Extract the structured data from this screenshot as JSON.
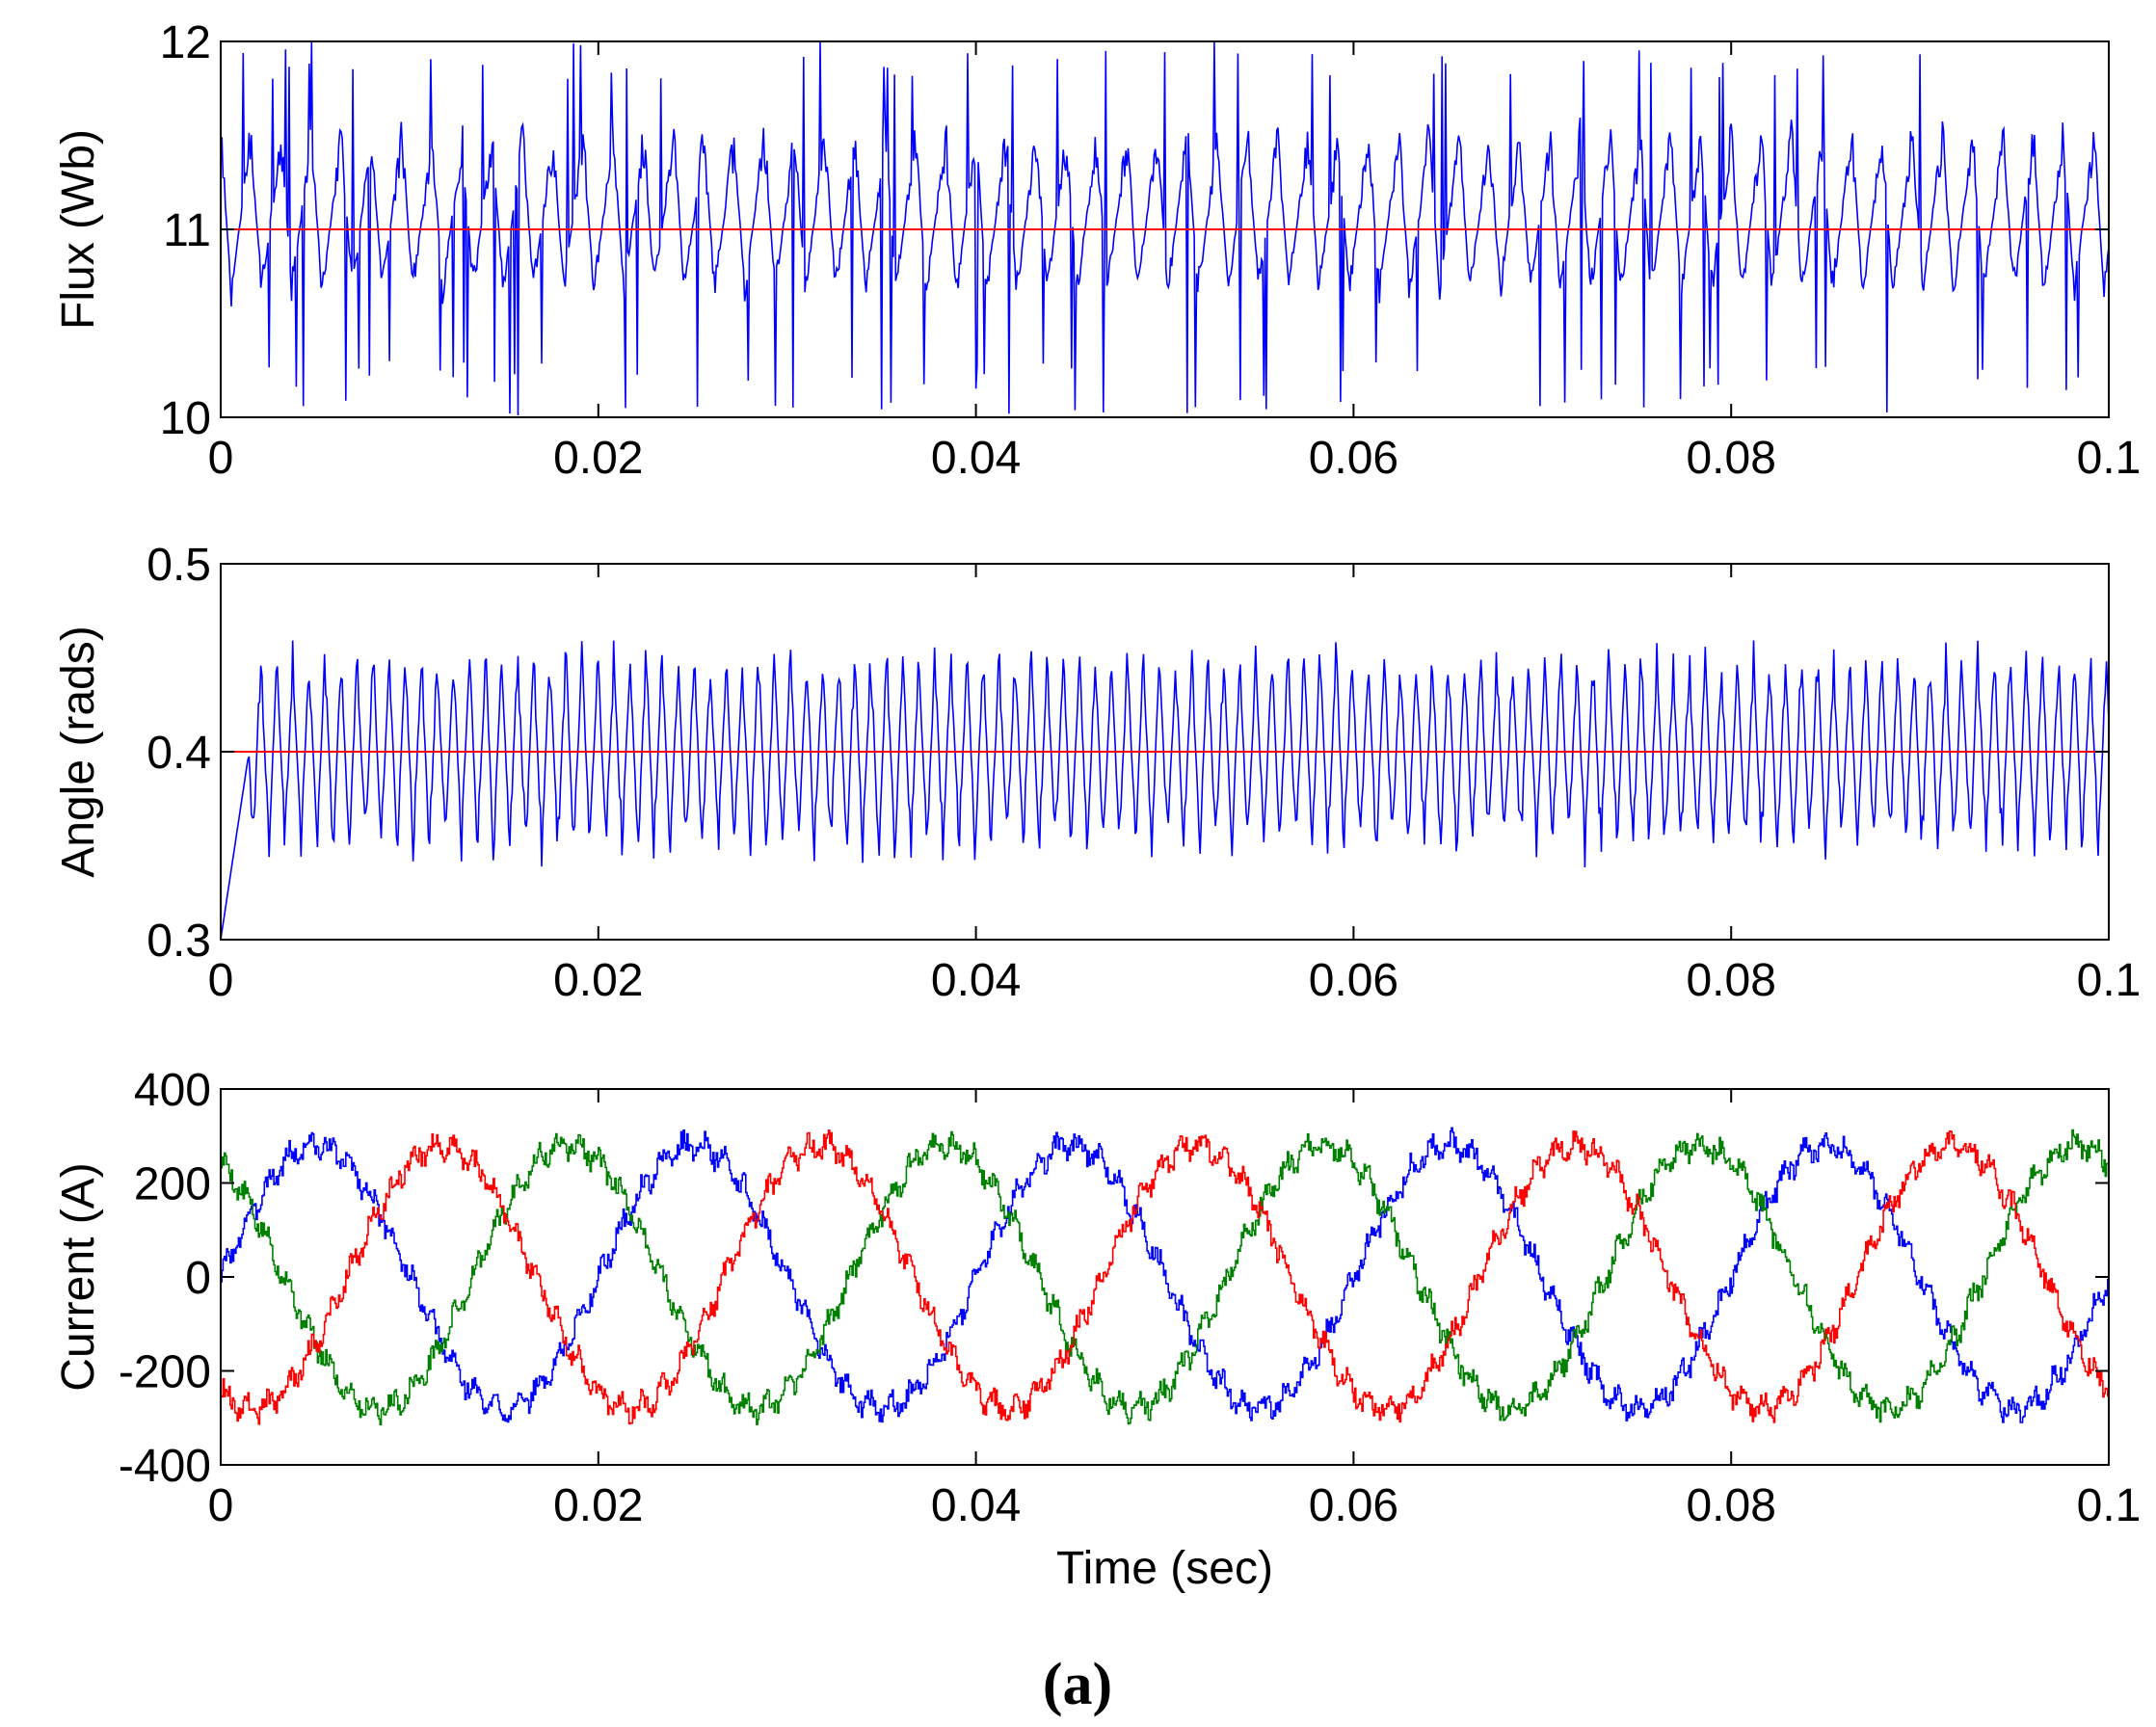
{
  "figure_caption": "(a)",
  "colors": {
    "measured": "#0000ff",
    "reference": "#ff0000",
    "phase_a": "#0000ff",
    "phase_b": "#008000",
    "phase_c": "#ff0000"
  },
  "chart_data": [
    {
      "type": "line",
      "ylabel": "Flux (Wb)",
      "xlabel": "",
      "xlim": [
        0,
        0.1
      ],
      "ylim": [
        10,
        12
      ],
      "x_ticks": [
        "0",
        "0.02",
        "0.04",
        "0.06",
        "0.08",
        "0.1"
      ],
      "y_ticks": [
        "10",
        "11",
        "12"
      ],
      "grid": false,
      "series": [
        {
          "name": "flux",
          "color": "measured",
          "kind": "hysteresis",
          "center": 11.2,
          "amplitude": 0.8,
          "period": 0.0016,
          "harmonic_period": 0.02,
          "seed": 7
        },
        {
          "name": "flux reference",
          "color": "reference",
          "kind": "constant",
          "value": 11
        }
      ]
    },
    {
      "type": "line",
      "ylabel": "Angle (rads)",
      "xlabel": "",
      "xlim": [
        0,
        0.1
      ],
      "ylim": [
        0.3,
        0.5
      ],
      "x_ticks": [
        "0",
        "0.02",
        "0.04",
        "0.06",
        "0.08",
        "0.1"
      ],
      "y_ticks": [
        "0.3",
        "0.4",
        "0.5"
      ],
      "grid": false,
      "series": [
        {
          "name": "angle",
          "color": "measured",
          "kind": "oscillation",
          "center": 0.4,
          "amplitude": 0.06,
          "period": 0.00085,
          "seed": 11
        },
        {
          "name": "angle reference",
          "color": "reference",
          "kind": "constant",
          "value": 0.4
        }
      ]
    },
    {
      "type": "line",
      "ylabel": "Current (A)",
      "xlabel": "Time (sec)",
      "xlim": [
        0,
        0.1
      ],
      "ylim": [
        -400,
        400
      ],
      "x_ticks": [
        "0",
        "0.02",
        "0.04",
        "0.06",
        "0.08",
        "0.1"
      ],
      "y_ticks": [
        "-400",
        "-200",
        "0",
        "200",
        "400"
      ],
      "grid": false,
      "series": [
        {
          "name": "phase a",
          "color": "phase_a",
          "kind": "sine",
          "amplitude": 280,
          "frequency": 50,
          "phase_deg": 0,
          "seed": 3
        },
        {
          "name": "phase b",
          "color": "phase_b",
          "kind": "sine",
          "amplitude": 280,
          "frequency": 50,
          "phase_deg": 120,
          "seed": 5
        },
        {
          "name": "phase c",
          "color": "phase_c",
          "kind": "sine",
          "amplitude": 280,
          "frequency": 50,
          "phase_deg": -120,
          "seed": 9
        }
      ]
    }
  ]
}
